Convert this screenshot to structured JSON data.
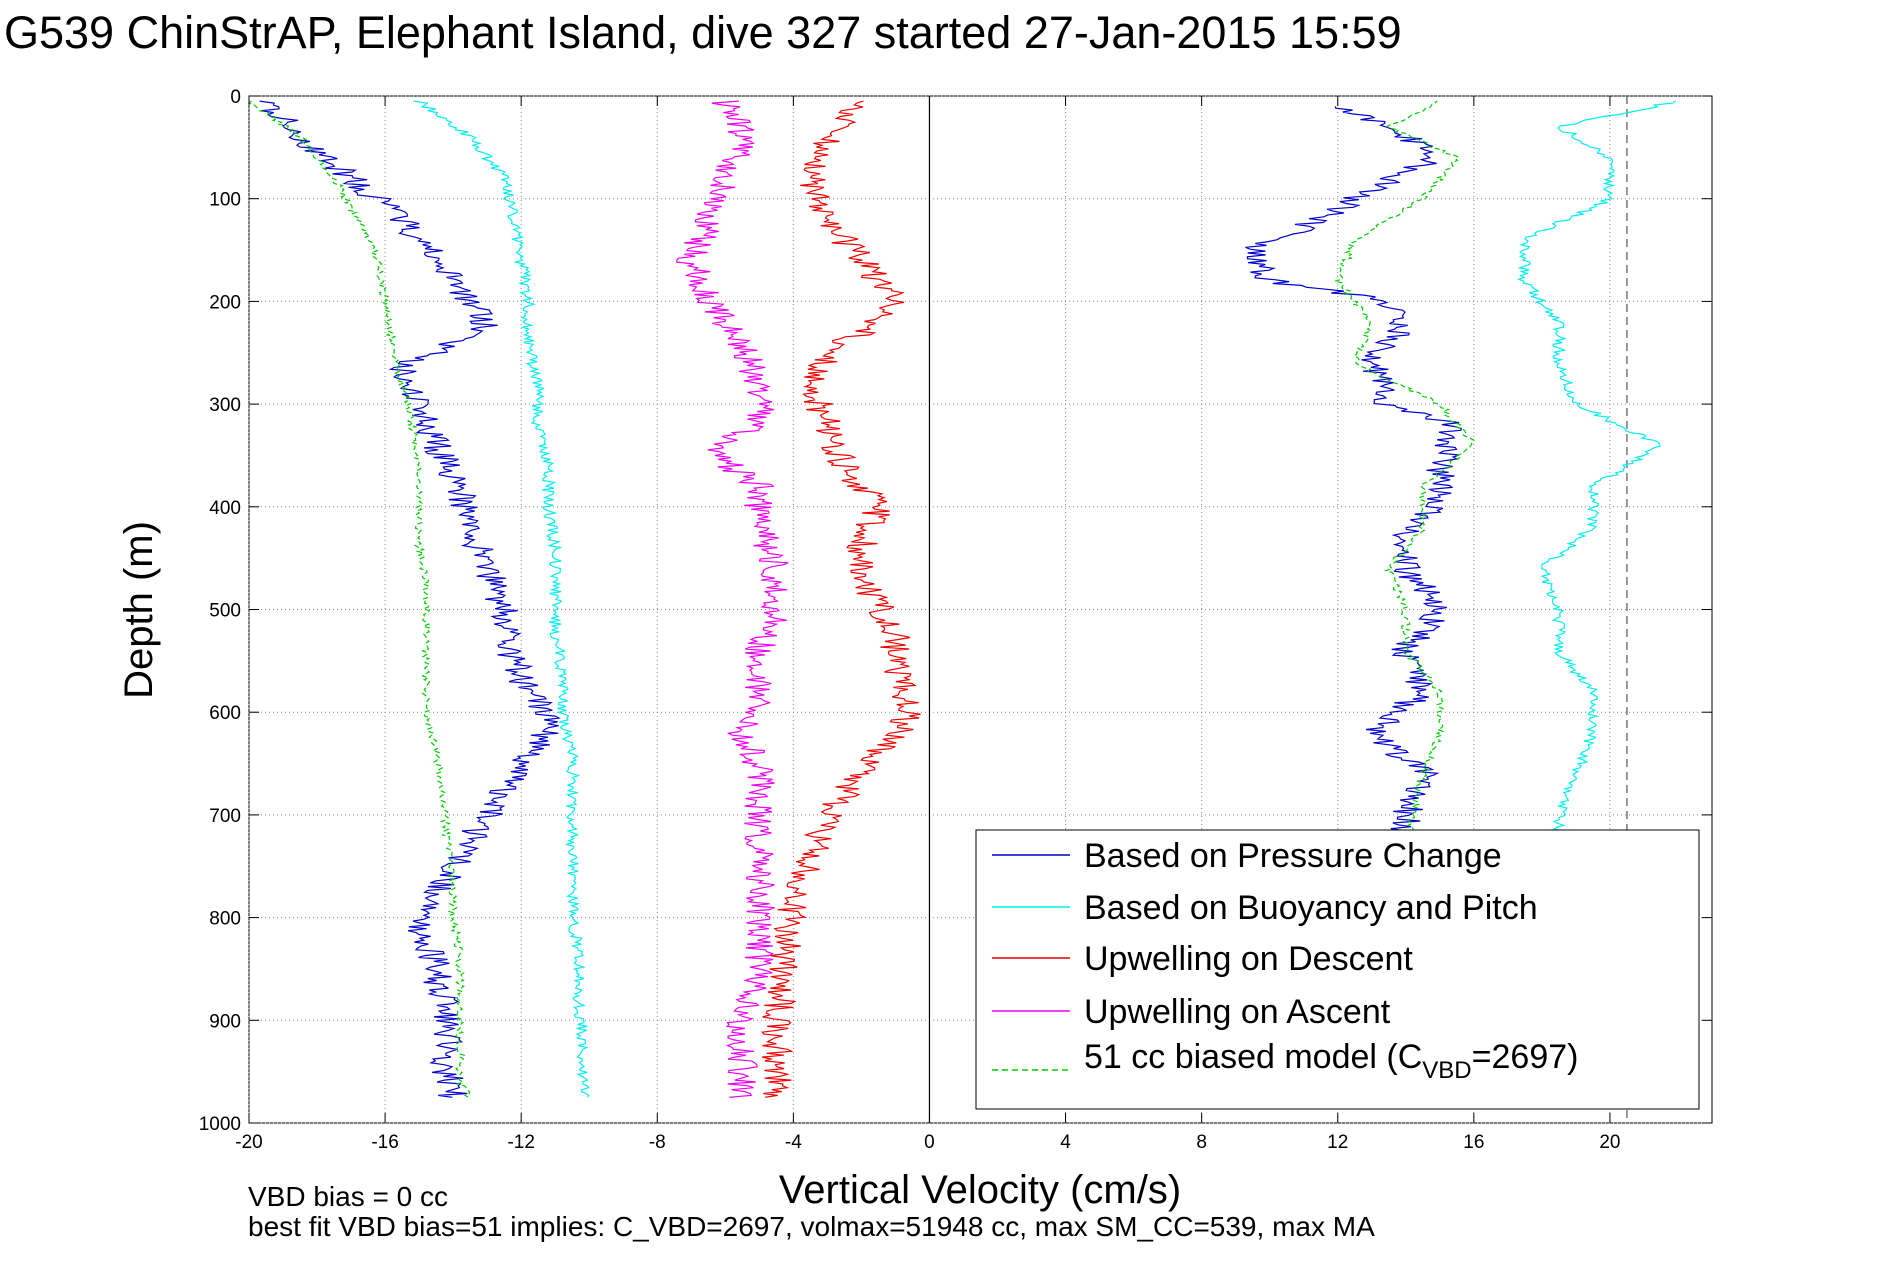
{
  "chart_data": {
    "type": "line",
    "title": "G539 ChinStrAP, Elephant Island, dive 327 started 27-Jan-2015 15:59",
    "xlabel": "Vertical Velocity (cm/s)",
    "ylabel": "Depth (m)",
    "xlim": [
      -20,
      23
    ],
    "ylim": [
      0,
      1000
    ],
    "y_reversed": true,
    "grid": true,
    "xticks": [
      -20,
      -16,
      -12,
      -8,
      -4,
      0,
      4,
      8,
      12,
      16,
      20
    ],
    "yticks": [
      0,
      100,
      200,
      300,
      400,
      500,
      600,
      700,
      800,
      900,
      1000
    ],
    "reference_lines": [
      {
        "x": 0,
        "style": "solid",
        "color": "#000000"
      },
      {
        "x": 20.5,
        "style": "dashed",
        "color": "#555555"
      }
    ],
    "legend_position": "bottom-right",
    "legend": {
      "entries": [
        {
          "label": "Based on Pressure Change",
          "color": "#0000cc",
          "style": "solid"
        },
        {
          "label": "Based on Buoyancy and Pitch",
          "color": "#00eeee",
          "style": "solid"
        },
        {
          "label": "Upwelling on Descent",
          "color": "#ee0000",
          "style": "solid"
        },
        {
          "label": "Upwelling on Ascent",
          "color": "#ee00ee",
          "style": "solid"
        }
      ],
      "model_entry": {
        "prefix": "51 cc biased model (C",
        "subscript": "VBD",
        "suffix": "=2697)",
        "color": "#00cc00",
        "style": "dashed"
      }
    },
    "series": [
      {
        "name": "Based on Pressure Change",
        "color": "#0000cc",
        "role": "descent",
        "depth": [
          5,
          40,
          80,
          120,
          160,
          200,
          230,
          260,
          300,
          340,
          380,
          420,
          460,
          500,
          540,
          580,
          610,
          650,
          700,
          750,
          800,
          850,
          900,
          950,
          975
        ],
        "values": [
          -19.5,
          -18.5,
          -17,
          -15.5,
          -14.5,
          -13.5,
          -13,
          -15.5,
          -15,
          -14.5,
          -13.8,
          -13.5,
          -13,
          -12.5,
          -12.3,
          -11.8,
          -11,
          -12,
          -13,
          -14,
          -15,
          -14.5,
          -14.2,
          -14.2,
          -14
        ]
      },
      {
        "name": "Based on Pressure Change",
        "color": "#0000cc",
        "role": "ascent",
        "depth": [
          975,
          950,
          900,
          850,
          800,
          750,
          700,
          660,
          620,
          580,
          540,
          500,
          460,
          420,
          400,
          360,
          320,
          300,
          260,
          230,
          200,
          180,
          150,
          120,
          90,
          60,
          30,
          10
        ],
        "values": [
          14,
          14.2,
          14,
          14,
          13.8,
          14,
          14,
          14.5,
          13,
          14.5,
          14,
          15,
          14,
          14,
          15,
          15,
          15.5,
          13.5,
          13,
          13.8,
          13.5,
          10,
          9.5,
          11.5,
          13,
          15,
          13.5,
          12
        ]
      },
      {
        "name": "Based on Buoyancy and Pitch",
        "color": "#00eeee",
        "role": "descent",
        "depth": [
          5,
          40,
          80,
          120,
          160,
          200,
          240,
          280,
          320,
          360,
          400,
          440,
          480,
          520,
          560,
          600,
          640,
          680,
          720,
          760,
          800,
          840,
          880,
          920,
          960,
          975
        ],
        "values": [
          -15,
          -13.5,
          -12.5,
          -12.2,
          -12,
          -11.8,
          -11.8,
          -11.5,
          -11.5,
          -11.2,
          -11.2,
          -11,
          -11,
          -11,
          -10.8,
          -10.8,
          -10.5,
          -10.5,
          -10.5,
          -10.5,
          -10.5,
          -10.3,
          -10.3,
          -10.2,
          -10.2,
          -10
        ]
      },
      {
        "name": "Based on Buoyancy and Pitch",
        "color": "#00eeee",
        "role": "ascent",
        "depth": [
          975,
          950,
          900,
          850,
          800,
          750,
          700,
          660,
          620,
          580,
          540,
          500,
          460,
          420,
          380,
          340,
          300,
          260,
          220,
          180,
          140,
          100,
          60,
          30,
          5
        ],
        "values": [
          18,
          18.5,
          18.3,
          18.3,
          18.2,
          18.5,
          18.5,
          19,
          19.5,
          19.5,
          18.5,
          18.5,
          18,
          19.5,
          19.5,
          21.5,
          19,
          18.5,
          18.5,
          17.5,
          17.5,
          20,
          20,
          18.5,
          22
        ]
      },
      {
        "name": "51 cc biased model (CVBD=2697)",
        "color": "#00cc00",
        "role": "descent",
        "depth": [
          5,
          40,
          80,
          120,
          160,
          200,
          240,
          280,
          320,
          360,
          400,
          440,
          480,
          520,
          560,
          600,
          640,
          680,
          720,
          760,
          800,
          840,
          880,
          920,
          960,
          975
        ],
        "values": [
          -20,
          -18.5,
          -17.5,
          -16.8,
          -16.2,
          -16,
          -15.8,
          -15.5,
          -15.2,
          -15,
          -15,
          -15,
          -14.8,
          -14.8,
          -14.8,
          -14.8,
          -14.5,
          -14.3,
          -14.2,
          -14,
          -14,
          -13.8,
          -13.8,
          -13.8,
          -13.8,
          -13.5
        ]
      },
      {
        "name": "51 cc biased model (CVBD=2697)",
        "color": "#00cc00",
        "role": "ascent",
        "depth": [
          975,
          950,
          900,
          850,
          800,
          750,
          700,
          660,
          620,
          580,
          540,
          500,
          460,
          420,
          380,
          340,
          300,
          260,
          220,
          180,
          140,
          100,
          60,
          30,
          5
        ],
        "values": [
          13.5,
          13.8,
          13.8,
          14,
          14,
          14,
          14.2,
          14.5,
          15,
          15,
          14,
          14,
          13.5,
          14.5,
          14.5,
          16,
          15,
          12.5,
          13,
          12,
          12.5,
          14.5,
          15.5,
          13.5,
          15
        ]
      },
      {
        "name": "Upwelling on Descent",
        "color": "#ee0000",
        "depth": [
          5,
          40,
          80,
          120,
          160,
          200,
          220,
          250,
          280,
          320,
          360,
          400,
          440,
          480,
          520,
          560,
          600,
          620,
          660,
          700,
          740,
          780,
          820,
          860,
          900,
          940,
          975
        ],
        "values": [
          -2,
          -3,
          -3.5,
          -3,
          -2,
          -1,
          -1.5,
          -3,
          -3.5,
          -3,
          -2.5,
          -1.5,
          -2,
          -1.8,
          -1,
          -1,
          -0.5,
          -1,
          -2,
          -3,
          -3.5,
          -4,
          -4.2,
          -4.3,
          -4.5,
          -4.5,
          -4.5
        ]
      },
      {
        "name": "Upwelling on Ascent",
        "color": "#ee00ee",
        "depth": [
          5,
          40,
          80,
          120,
          160,
          200,
          240,
          280,
          320,
          345,
          380,
          420,
          460,
          500,
          540,
          580,
          620,
          660,
          700,
          740,
          780,
          820,
          860,
          900,
          940,
          975
        ],
        "values": [
          -6,
          -5.5,
          -6,
          -6.5,
          -7,
          -6.5,
          -5.5,
          -5,
          -5,
          -6.5,
          -5,
          -5,
          -4.5,
          -4.5,
          -5,
          -5,
          -5.5,
          -5,
          -5,
          -5,
          -5,
          -5,
          -5,
          -5.5,
          -5.5,
          -5.5
        ]
      }
    ]
  },
  "footer": {
    "line1": "VBD bias = 0 cc",
    "line2": "best fit VBD bias=51 implies: C_VBD=2697, volmax=51948 cc, max SM_CC=539, max MA"
  }
}
